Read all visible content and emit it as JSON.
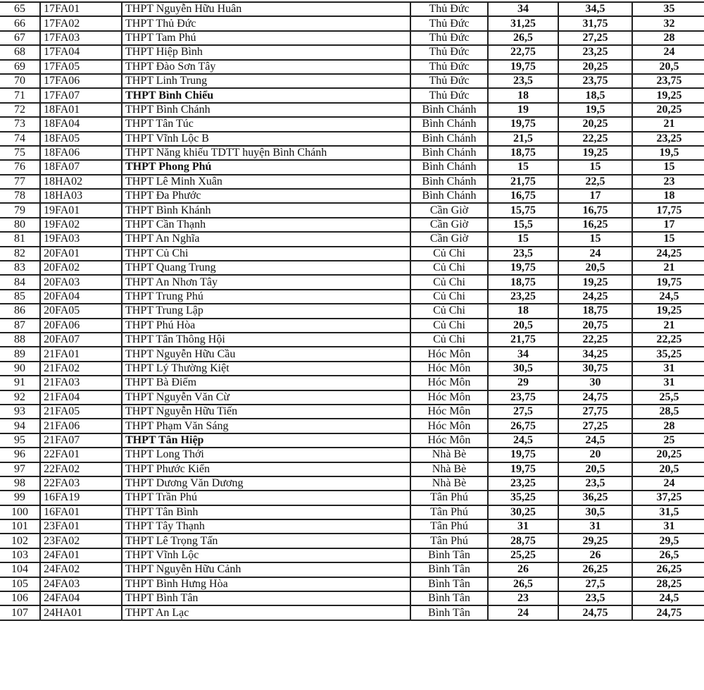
{
  "table": {
    "rows": [
      [
        "65",
        "17FA01",
        "THPT Nguyễn Hữu Huân",
        "Thủ Đức",
        "34",
        "34,5",
        "35",
        false
      ],
      [
        "66",
        "17FA02",
        "THPT Thủ Đức",
        "Thủ Đức",
        "31,25",
        "31,75",
        "32",
        false
      ],
      [
        "67",
        "17FA03",
        "THPT Tam Phú",
        "Thủ Đức",
        "26,5",
        "27,25",
        "28",
        false
      ],
      [
        "68",
        "17FA04",
        "THPT Hiệp Bình",
        "Thủ Đức",
        "22,75",
        "23,25",
        "24",
        false
      ],
      [
        "69",
        "17FA05",
        "THPT Đào Sơn Tây",
        "Thủ Đức",
        "19,75",
        "20,25",
        "20,5",
        false
      ],
      [
        "70",
        "17FA06",
        "THPT Linh Trung",
        "Thủ Đức",
        "23,5",
        "23,75",
        "23,75",
        false
      ],
      [
        "71",
        "17FA07",
        "THPT Bình Chiểu",
        "Thủ Đức",
        "18",
        "18,5",
        "19,25",
        true
      ],
      [
        "72",
        "18FA01",
        "THPT Bình Chánh",
        "Bình Chánh",
        "19",
        "19,5",
        "20,25",
        false
      ],
      [
        "73",
        "18FA04",
        "THPT Tân Túc",
        "Bình Chánh",
        "19,75",
        "20,25",
        "21",
        false
      ],
      [
        "74",
        "18FA05",
        "THPT Vĩnh Lộc B",
        "Bình Chánh",
        "21,5",
        "22,25",
        "23,25",
        false
      ],
      [
        "75",
        "18FA06",
        "THPT Năng khiếu TDTT huyện Bình Chánh",
        "Bình Chánh",
        "18,75",
        "19,25",
        "19,5",
        false
      ],
      [
        "76",
        "18FA07",
        "THPT Phong Phú",
        "Bình Chánh",
        "15",
        "15",
        "15",
        true
      ],
      [
        "77",
        "18HA02",
        "THPT Lê Minh Xuân",
        "Bình Chánh",
        "21,75",
        "22,5",
        "23",
        false
      ],
      [
        "78",
        "18HA03",
        "THPT Đa Phước",
        "Bình Chánh",
        "16,75",
        "17",
        "18",
        false
      ],
      [
        "79",
        "19FA01",
        "THPT Bình Khánh",
        "Cần Giờ",
        "15,75",
        "16,75",
        "17,75",
        false
      ],
      [
        "80",
        "19FA02",
        "THPT Cần Thạnh",
        "Cần Giờ",
        "15,5",
        "16,25",
        "17",
        false
      ],
      [
        "81",
        "19FA03",
        "THPT An Nghĩa",
        "Cần Giờ",
        "15",
        "15",
        "15",
        false
      ],
      [
        "82",
        "20FA01",
        "THPT Củ Chi",
        "Củ Chi",
        "23,5",
        "24",
        "24,25",
        false
      ],
      [
        "83",
        "20FA02",
        "THPT Quang Trung",
        "Củ Chi",
        "19,75",
        "20,5",
        "21",
        false
      ],
      [
        "84",
        "20FA03",
        "THPT An Nhơn Tây",
        "Củ Chi",
        "18,75",
        "19,25",
        "19,75",
        false
      ],
      [
        "85",
        "20FA04",
        "THPT Trung Phú",
        "Củ Chi",
        "23,25",
        "24,25",
        "24,5",
        false
      ],
      [
        "86",
        "20FA05",
        "THPT Trung Lập",
        "Củ Chi",
        "18",
        "18,75",
        "19,25",
        false
      ],
      [
        "87",
        "20FA06",
        "THPT Phú Hòa",
        "Củ Chi",
        "20,5",
        "20,75",
        "21",
        false
      ],
      [
        "88",
        "20FA07",
        "THPT Tân Thông Hội",
        "Củ Chi",
        "21,75",
        "22,25",
        "22,25",
        false
      ],
      [
        "89",
        "21FA01",
        "THPT Nguyễn Hữu Cầu",
        "Hóc Môn",
        "34",
        "34,25",
        "35,25",
        false
      ],
      [
        "90",
        "21FA02",
        "THPT Lý Thường Kiệt",
        "Hóc Môn",
        "30,5",
        "30,75",
        "31",
        false
      ],
      [
        "91",
        "21FA03",
        "THPT Bà Điểm",
        "Hóc Môn",
        "29",
        "30",
        "31",
        false
      ],
      [
        "92",
        "21FA04",
        "THPT Nguyễn Văn Cừ",
        "Hóc Môn",
        "23,75",
        "24,75",
        "25,5",
        false
      ],
      [
        "93",
        "21FA05",
        "THPT Nguyễn Hữu Tiến",
        "Hóc Môn",
        "27,5",
        "27,75",
        "28,5",
        false
      ],
      [
        "94",
        "21FA06",
        "THPT Phạm Văn Sáng",
        "Hóc Môn",
        "26,75",
        "27,25",
        "28",
        false
      ],
      [
        "95",
        "21FA07",
        "THPT Tân Hiệp",
        "Hóc Môn",
        "24,5",
        "24,5",
        "25",
        true
      ],
      [
        "96",
        "22FA01",
        "THPT Long Thới",
        "Nhà Bè",
        "19,75",
        "20",
        "20,25",
        false
      ],
      [
        "97",
        "22FA02",
        "THPT Phước Kiển",
        "Nhà Bè",
        "19,75",
        "20,5",
        "20,5",
        false
      ],
      [
        "98",
        "22FA03",
        "THPT Dương Văn Dương",
        "Nhà Bè",
        "23,25",
        "23,5",
        "24",
        false
      ],
      [
        "99",
        "16FA19",
        "THPT Trần Phú",
        "Tân Phú",
        "35,25",
        "36,25",
        "37,25",
        false
      ],
      [
        "100",
        "16FA01",
        "THPT Tân Bình",
        "Tân Phú",
        "30,25",
        "30,5",
        "31,5",
        false
      ],
      [
        "101",
        "23FA01",
        "THPT Tây Thạnh",
        "Tân Phú",
        "31",
        "31",
        "31",
        false
      ],
      [
        "102",
        "23FA02",
        "THPT Lê Trọng Tấn",
        "Tân Phú",
        "28,75",
        "29,25",
        "29,5",
        false
      ],
      [
        "103",
        "24FA01",
        "THPT Vĩnh Lộc",
        "Bình Tân",
        "25,25",
        "26",
        "26,5",
        false
      ],
      [
        "104",
        "24FA02",
        "THPT Nguyễn Hữu Cảnh",
        "Bình Tân",
        "26",
        "26,25",
        "26,25",
        false
      ],
      [
        "105",
        "24FA03",
        "THPT Bình Hưng Hòa",
        "Bình Tân",
        "26,5",
        "27,5",
        "28,25",
        false
      ],
      [
        "106",
        "24FA04",
        "THPT Bình Tân",
        "Bình Tân",
        "23",
        "23,5",
        "24,5",
        false
      ],
      [
        "107",
        "24HA01",
        "THPT An Lạc",
        "Bình Tân",
        "24",
        "24,75",
        "24,75",
        false
      ]
    ]
  }
}
